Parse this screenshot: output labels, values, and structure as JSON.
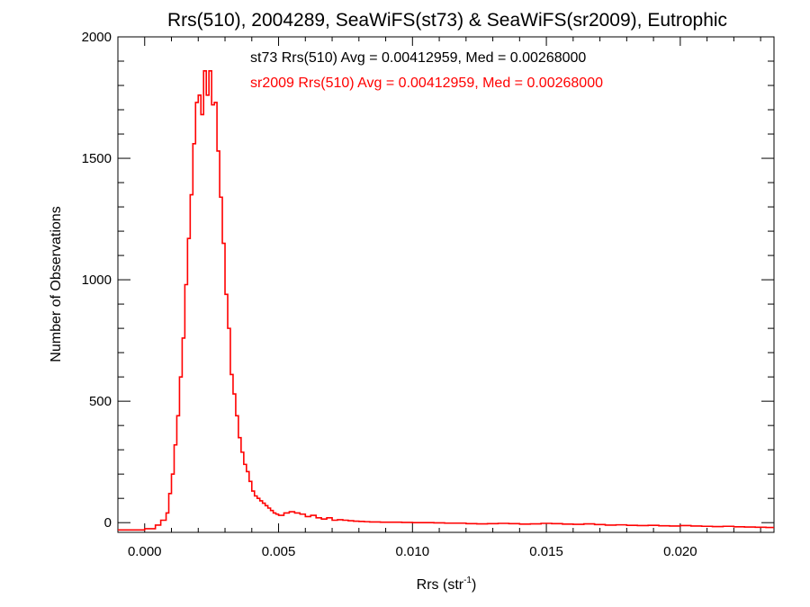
{
  "chart_data": {
    "type": "line",
    "step": true,
    "title": "Rrs(510), 2004289, SeaWiFS(st73) & SeaWiFS(sr2009), Eutrophic",
    "xlabel": {
      "base": "Rrs (str",
      "sup": "-1",
      "close": ")"
    },
    "ylabel": "Number of Observations",
    "xlim": [
      -0.001,
      0.0235
    ],
    "ylim": [
      -40,
      2000
    ],
    "xticks": [
      0.0,
      0.005,
      0.01,
      0.015,
      0.02
    ],
    "xtick_labels": [
      "0.000",
      "0.005",
      "0.010",
      "0.015",
      "0.020"
    ],
    "yticks": [
      0,
      500,
      1000,
      1500,
      2000
    ],
    "ytick_labels": [
      "0",
      "500",
      "1000",
      "1500",
      "2000"
    ],
    "grid": false,
    "annotations": [
      {
        "text": "st73 Rrs(510) Avg = 0.00412959, Med = 0.00268000",
        "color": "#000000"
      },
      {
        "text": "sr2009 Rrs(510) Avg = 0.00412959, Med = 0.00268000",
        "color": "#ff0000"
      }
    ],
    "series": [
      {
        "color": "#ff0000",
        "x": [
          -0.001,
          0.0,
          0.0004,
          0.0006,
          0.0008,
          0.0009,
          0.001,
          0.0011,
          0.0012,
          0.0013,
          0.0014,
          0.0015,
          0.0016,
          0.0017,
          0.0018,
          0.0019,
          0.002,
          0.0021,
          0.0022,
          0.0023,
          0.0024,
          0.0025,
          0.0026,
          0.0027,
          0.0028,
          0.0029,
          0.003,
          0.0031,
          0.0032,
          0.0033,
          0.0034,
          0.0035,
          0.0036,
          0.0037,
          0.0038,
          0.0039,
          0.004,
          0.0041,
          0.0042,
          0.0043,
          0.0044,
          0.0045,
          0.0046,
          0.0047,
          0.0048,
          0.0049,
          0.005,
          0.0052,
          0.0054,
          0.0056,
          0.0058,
          0.006,
          0.0062,
          0.0064,
          0.0066,
          0.0068,
          0.007,
          0.0072,
          0.0074,
          0.0076,
          0.0078,
          0.008,
          0.0082,
          0.0084,
          0.0086,
          0.0088,
          0.009,
          0.0093,
          0.0096,
          0.01,
          0.0104,
          0.0108,
          0.0112,
          0.0116,
          0.012,
          0.0124,
          0.0128,
          0.0132,
          0.0136,
          0.014,
          0.0144,
          0.0148,
          0.0152,
          0.0156,
          0.016,
          0.0164,
          0.0168,
          0.0172,
          0.0176,
          0.018,
          0.0184,
          0.0188,
          0.0192,
          0.0196,
          0.02,
          0.0204,
          0.0208,
          0.0212,
          0.0216,
          0.022,
          0.0224,
          0.0228,
          0.0232
        ],
        "y": [
          -30,
          -25,
          -10,
          10,
          40,
          120,
          200,
          320,
          440,
          600,
          760,
          980,
          1170,
          1350,
          1560,
          1730,
          1760,
          1680,
          1860,
          1760,
          1860,
          1720,
          1730,
          1530,
          1340,
          1150,
          940,
          800,
          610,
          530,
          440,
          350,
          290,
          240,
          210,
          170,
          130,
          110,
          100,
          90,
          80,
          70,
          60,
          50,
          40,
          35,
          30,
          40,
          45,
          40,
          35,
          25,
          30,
          20,
          15,
          20,
          10,
          12,
          10,
          8,
          6,
          5,
          4,
          3,
          3,
          2,
          2,
          2,
          1,
          0,
          0,
          -1,
          -2,
          -2,
          -4,
          -5,
          -4,
          -3,
          -4,
          -6,
          -5,
          -3,
          -4,
          -6,
          -7,
          -5,
          -8,
          -10,
          -9,
          -11,
          -12,
          -11,
          -13,
          -14,
          -12,
          -14,
          -15,
          -16,
          -15,
          -17,
          -18,
          -19,
          -20
        ]
      }
    ]
  }
}
